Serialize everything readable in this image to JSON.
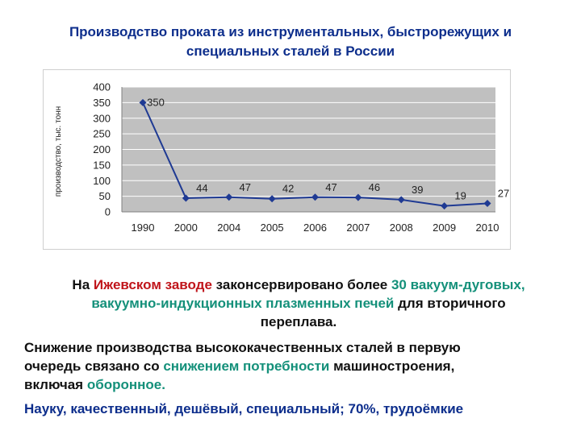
{
  "header": {
    "title_line1": "Производство проката из инструментальных, быстрорежущих и",
    "title_line2": "специальных сталей в России"
  },
  "chart_data": {
    "type": "line",
    "title": "",
    "xlabel": "",
    "ylabel": "производство, тыс. тонн",
    "categories": [
      "1990",
      "2000",
      "2004",
      "2005",
      "2006",
      "2007",
      "2008",
      "2009",
      "2010"
    ],
    "values": [
      350,
      44,
      47,
      42,
      47,
      46,
      39,
      19,
      27
    ],
    "data_labels": [
      "350",
      "44",
      "47",
      "42",
      "47",
      "46",
      "39",
      "19",
      "27"
    ],
    "ylim": [
      0,
      400
    ],
    "yticks": [
      "0",
      "50",
      "100",
      "150",
      "200",
      "250",
      "300",
      "350",
      "400"
    ],
    "grid": true,
    "colors": {
      "plot_bg": "#c0c0c0",
      "line": "#1f3a93",
      "grid": "#ffffff"
    }
  },
  "text": {
    "p1": {
      "s1": "На ",
      "s2": "Ижевском заводе",
      "s3": " законсервировано более ",
      "s4": "30 вакуум-дуговых,",
      "s5": "вакуумно-индукционных плазменных печей",
      "s6": " для вторичного",
      "s7": "переплава."
    },
    "p2": {
      "s1": "Снижение производства высококачественных сталей в первую",
      "s2": "очередь связано со ",
      "s3": "снижением потребности",
      "s4": " машиностроения,",
      "s5": "включая ",
      "s6": "оборонное."
    },
    "p3": "Науку, качественный, дешёвый, специальный;  70%, трудоёмкие"
  }
}
